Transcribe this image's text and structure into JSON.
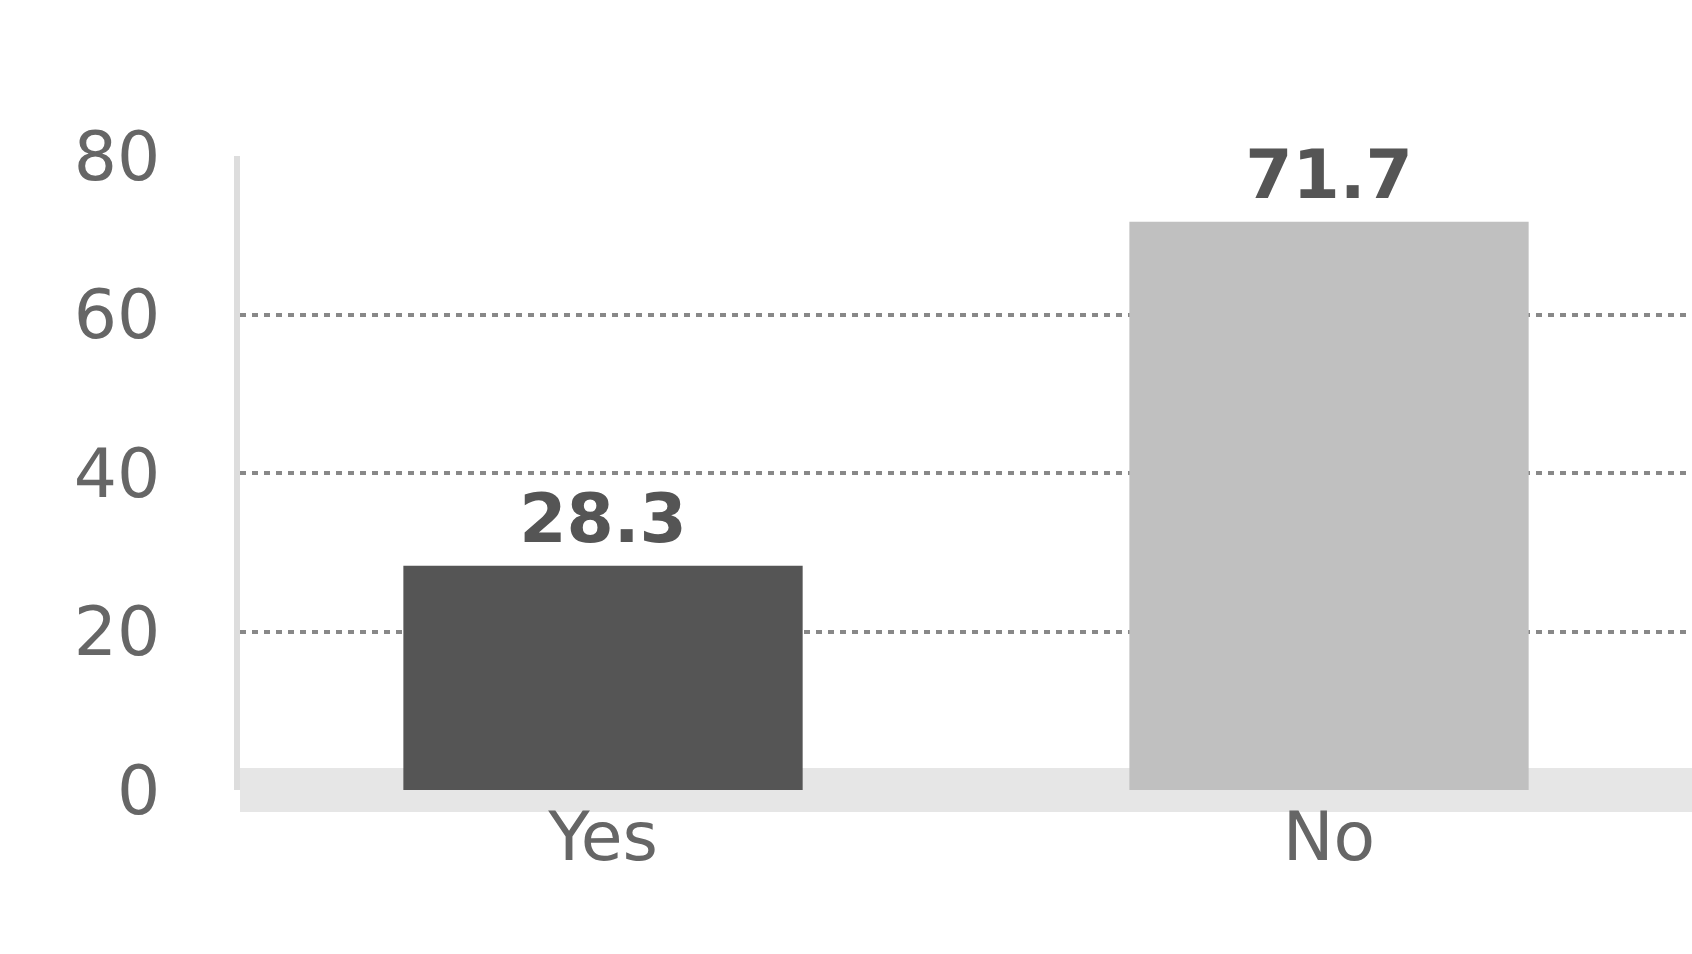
{
  "chart_data": {
    "type": "bar",
    "categories": [
      "Yes",
      "No"
    ],
    "values": [
      28.3,
      71.7
    ],
    "colors": [
      "#555555",
      "#c0c0c0"
    ],
    "ylim": [
      0,
      80
    ],
    "yticks": [
      0,
      20,
      40,
      60,
      80
    ],
    "grid": "y",
    "data_labels": true
  }
}
